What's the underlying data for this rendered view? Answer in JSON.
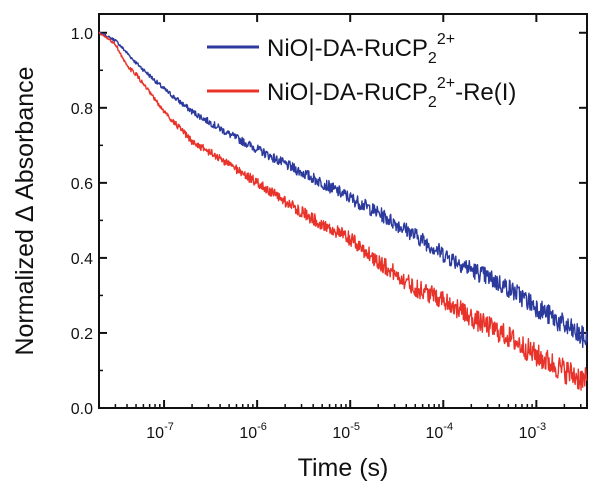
{
  "chart_data": {
    "type": "line",
    "xlabel": "Time (s)",
    "ylabel": "Normalized Δ Absorbance",
    "xscale": "log",
    "xlim": [
      2e-08,
      0.0035
    ],
    "ylim": [
      0.0,
      1.05
    ],
    "x_ticks": [
      {
        "value": 1e-07,
        "base": "10",
        "exp": "-7"
      },
      {
        "value": 1e-06,
        "base": "10",
        "exp": "-6"
      },
      {
        "value": 1e-05,
        "base": "10",
        "exp": "-5"
      },
      {
        "value": 0.0001,
        "base": "10",
        "exp": "-4"
      },
      {
        "value": 0.001,
        "base": "10",
        "exp": "-3"
      }
    ],
    "y_ticks": [
      "0.0",
      "0.2",
      "0.4",
      "0.6",
      "0.8",
      "1.0"
    ],
    "grid": false,
    "legend_position": "top-right",
    "series": [
      {
        "legend_parts": [
          "NiO|-DA-RuCP",
          "2",
          "2+",
          ""
        ],
        "color": "#2b3a9c",
        "noise": 0.035,
        "x": [
          2e-08,
          3e-08,
          5e-08,
          1e-07,
          2e-07,
          5e-07,
          1e-06,
          2e-06,
          5e-06,
          1e-05,
          2e-05,
          5e-05,
          0.0001,
          0.0002,
          0.0005,
          0.001,
          0.002,
          0.0035
        ],
        "y": [
          1.0,
          0.98,
          0.92,
          0.85,
          0.79,
          0.73,
          0.69,
          0.65,
          0.6,
          0.56,
          0.52,
          0.46,
          0.41,
          0.37,
          0.32,
          0.27,
          0.22,
          0.18
        ]
      },
      {
        "legend_parts": [
          "NiO|-DA-RuCP",
          "2",
          "2+",
          "-Re(I)"
        ],
        "color": "#e8332a",
        "noise": 0.04,
        "x": [
          2e-08,
          3e-08,
          4e-08,
          5e-08,
          7e-08,
          1e-07,
          2e-07,
          5e-07,
          1e-06,
          2e-06,
          5e-06,
          1e-05,
          2e-05,
          5e-05,
          0.0001,
          0.0002,
          0.0005,
          0.001,
          0.002,
          0.0035
        ],
        "y": [
          1.0,
          0.97,
          0.91,
          0.89,
          0.84,
          0.79,
          0.71,
          0.65,
          0.6,
          0.55,
          0.49,
          0.45,
          0.39,
          0.32,
          0.29,
          0.24,
          0.19,
          0.14,
          0.1,
          0.07
        ]
      }
    ]
  }
}
